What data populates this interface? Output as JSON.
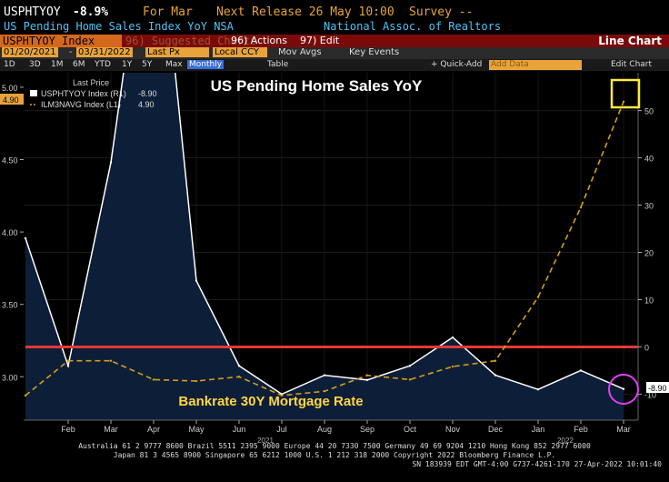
{
  "header": {
    "ticker": "USPHTYOY",
    "last": "-8.9%",
    "period": "For Mar",
    "next_release": "Next Release 26 May 10:00",
    "survey": "Survey --",
    "description": "US Pending Home Sales Index YoY NSA",
    "source": "National Assoc. of Realtors"
  },
  "toolbar": {
    "ticker_field": "USPHTYOY Index",
    "suggested": "96) Suggested Charts",
    "actions": "96) Actions",
    "edit": "97) Edit",
    "chart_type": "Line Chart"
  },
  "range_bar": {
    "start": "01/20/2021",
    "end": "03/31/2022",
    "field": "Last Px",
    "currency": "Local CCY",
    "mov_avgs": "Mov Avgs",
    "key_events": "Key Events"
  },
  "period_bar": {
    "periods": [
      "1D",
      "3D",
      "1M",
      "6M",
      "YTD",
      "1Y",
      "5Y",
      "Max"
    ],
    "frequency": "Monthly",
    "table": "Table",
    "quick_add": "+ Quick-Add",
    "add_data_placeholder": "Add Data",
    "edit_chart": "Edit Chart"
  },
  "chart_data": {
    "type": "line",
    "title": "US Pending Home Sales YoY",
    "annotation": "Bankrate 30Y Mortgage Rate",
    "legend_header": "Last Price",
    "x": [
      "2021-01",
      "2021-02",
      "2021-03",
      "2021-04",
      "2021-05",
      "2021-06",
      "2021-07",
      "2021-08",
      "2021-09",
      "2021-10",
      "2021-11",
      "2021-12",
      "2022-01",
      "2022-02",
      "2022-03"
    ],
    "x_tick_labels": [
      "Feb",
      "Mar",
      "Apr",
      "May",
      "Jun",
      "Jul",
      "Aug",
      "Sep",
      "Oct",
      "Nov",
      "Dec",
      "Jan",
      "Feb",
      "Mar"
    ],
    "year_labels": [
      "2021",
      "2022"
    ],
    "series": [
      {
        "name": "USPHTYOY Index (R1)",
        "last_label": "-8.90",
        "axis": "right",
        "style": "area-white",
        "values": [
          23,
          -4,
          39,
          103,
          14,
          -4,
          -10,
          -6,
          -7,
          -4,
          2,
          -6,
          -9,
          -5,
          -8.9
        ]
      },
      {
        "name": "ILM3NAVG Index (L1)",
        "last_label": "4.90",
        "axis": "left",
        "style": "dashed-gold",
        "values": [
          2.87,
          3.11,
          3.11,
          2.98,
          2.97,
          3.0,
          2.87,
          2.9,
          3.01,
          2.98,
          3.07,
          3.11,
          3.55,
          4.17,
          4.9
        ]
      }
    ],
    "horizontal_line": {
      "axis": "right",
      "value": 0,
      "color": "#e53935"
    },
    "left_axis": {
      "ticks": [
        "3.00",
        "3.50",
        "4.00",
        "4.50",
        "5.00"
      ],
      "range": [
        2.7,
        5.1
      ]
    },
    "right_axis": {
      "ticks": [
        "-10",
        "0",
        "10",
        "20",
        "30",
        "40",
        "50"
      ],
      "range": [
        -15.5,
        58
      ]
    },
    "left_badge": "4.90",
    "right_badge": "-8.90",
    "colors": {
      "area": "#0d1e38",
      "area_line": "#ffffff",
      "dashed": "#d4a017",
      "hline": "#e53935",
      "yellow_box": "#ffeb3b",
      "pink_circle": "#e040fb",
      "annotation": "#ffd740"
    }
  },
  "footer": {
    "line1": "Australia 61 2 9777 8600 Brazil 5511 2395 9000 Europe 44 20 7330 7500 Germany 49 69 9204 1210 Hong Kong 852 2977 6000",
    "line2": "Japan 81 3 4565 8900      Singapore 65 6212 1000     U.S. 1 212 318 2000          Copyright 2022 Bloomberg Finance L.P.",
    "line3": "SN 183939 EDT  GMT-4:00 G737-4261-170 27-Apr-2022 10:01:40"
  }
}
